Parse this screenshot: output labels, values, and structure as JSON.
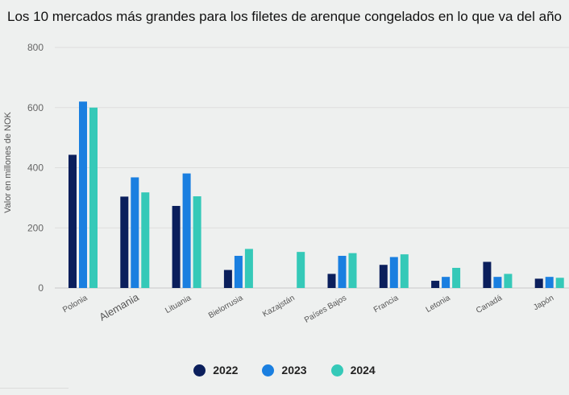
{
  "chart_data": {
    "type": "bar",
    "title": "Los 10 mercados más grandes para los filetes de arenque congelados en lo que va del año",
    "ylabel": "Valor en millones de NOK",
    "xlabel": "",
    "ylim": [
      0,
      800
    ],
    "yticks": [
      0,
      200,
      400,
      600,
      800
    ],
    "grid": true,
    "legend_position": "bottom",
    "categories": [
      "Polonia",
      "Alemania",
      "Lituania",
      "Bielorrusia",
      "Kazajstán",
      "Países Bajos",
      "Francia",
      "Letonia",
      "Canadá",
      "Japón"
    ],
    "series": [
      {
        "name": "2022",
        "color": "#0b1f5c",
        "values": [
          443,
          304,
          273,
          60,
          0,
          47,
          77,
          24,
          87,
          31
        ]
      },
      {
        "name": "2023",
        "color": "#1a7fe0",
        "values": [
          620,
          368,
          381,
          107,
          0,
          107,
          103,
          37,
          37,
          37
        ]
      },
      {
        "name": "2024",
        "color": "#35c9b8",
        "values": [
          600,
          318,
          305,
          130,
          120,
          116,
          112,
          67,
          47,
          34
        ]
      }
    ]
  }
}
